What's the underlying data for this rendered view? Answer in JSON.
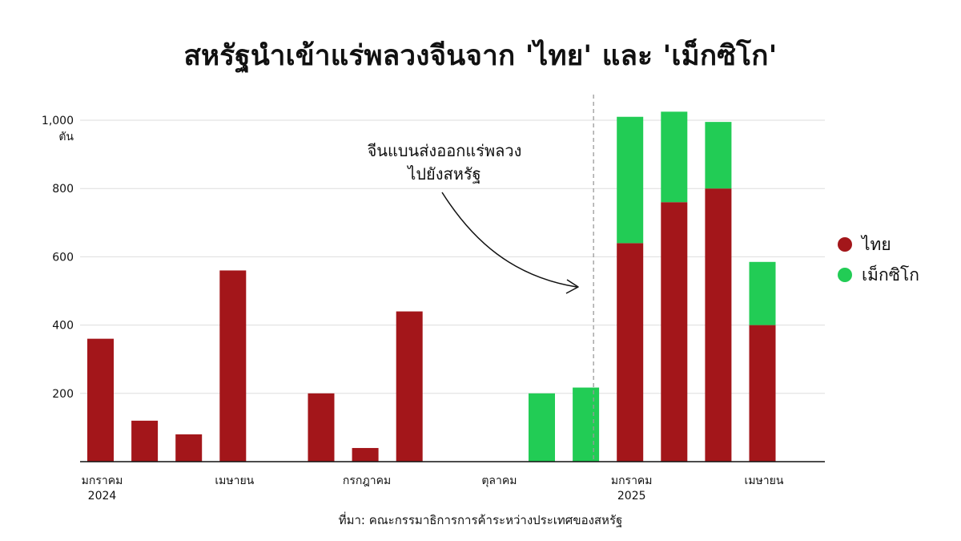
{
  "title": "สหรัฐนำเข้าแร่พลวงจีนจาก 'ไทย' และ 'เม็กซิโก'",
  "source": "ที่มา: คณะกรรมาธิการการค้าระหว่างประเทศของสหรัฐ",
  "annotation": {
    "line1": "จีนแบนส่งออกแร่พลวง",
    "line2": "ไปยังสหรัฐ"
  },
  "colors": {
    "thailand": "#a3161a",
    "mexico": "#22cc55",
    "grid": "#dddddd",
    "axis": "#111111",
    "divider": "#999999"
  },
  "legend": [
    {
      "name": "ไทย",
      "color": "#a3161a"
    },
    {
      "name": "เม็กซิโก",
      "color": "#22cc55"
    }
  ],
  "chart_data": {
    "type": "bar",
    "stacked": true,
    "ylim": [
      0,
      1000
    ],
    "yticks": [
      200,
      400,
      600,
      800,
      1000
    ],
    "ytick_labels": [
      "200",
      "400",
      "600",
      "800",
      "1,000"
    ],
    "yunit": "ตัน",
    "grid": true,
    "legend_position": "right",
    "months": [
      "2024-01",
      "2024-02",
      "2024-03",
      "2024-04",
      "2024-05",
      "2024-06",
      "2024-07",
      "2024-08",
      "2024-09",
      "2024-10",
      "2024-11",
      "2024-12",
      "2025-01",
      "2025-02",
      "2025-03",
      "2025-04"
    ],
    "xtick_labels": [
      {
        "month": "2024-01",
        "line1": "มกราคม",
        "line2": "2024"
      },
      {
        "month": "2024-04",
        "line1": "เมษายน",
        "line2": ""
      },
      {
        "month": "2024-07",
        "line1": "กรกฎาคม",
        "line2": ""
      },
      {
        "month": "2024-10",
        "line1": "ตุลาคม",
        "line2": ""
      },
      {
        "month": "2025-01",
        "line1": "มกราคม",
        "line2": "2025"
      },
      {
        "month": "2025-04",
        "line1": "เมษายน",
        "line2": ""
      }
    ],
    "annotation_between": [
      "2024-12",
      "2025-01"
    ],
    "series": [
      {
        "name": "ไทย",
        "values": [
          360,
          120,
          80,
          560,
          0,
          200,
          40,
          440,
          0,
          0,
          0,
          0,
          640,
          760,
          800,
          400
        ]
      },
      {
        "name": "เม็กซิโก",
        "values": [
          0,
          0,
          0,
          0,
          0,
          0,
          0,
          0,
          0,
          0,
          200,
          217,
          370,
          265,
          195,
          185
        ]
      }
    ]
  }
}
